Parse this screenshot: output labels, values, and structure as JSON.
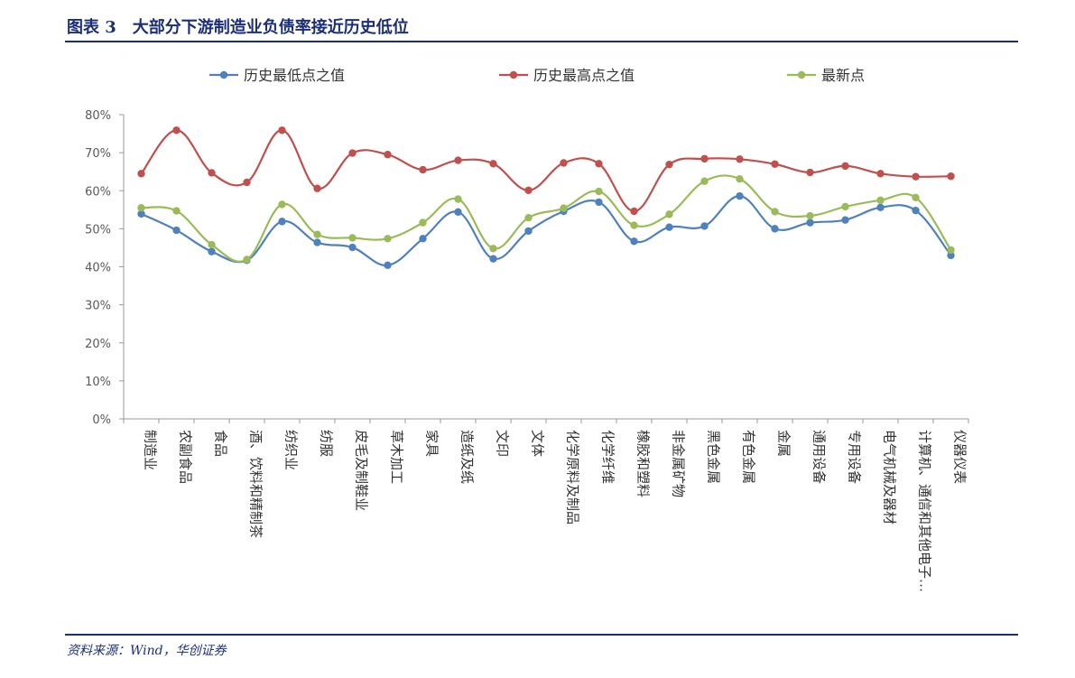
{
  "figure": {
    "title": "图表 3　大部分下游制造业负债率接近历史低位",
    "source": "资料来源：Wind，华创证券"
  },
  "chart_data": {
    "type": "line",
    "title": "",
    "xlabel": "",
    "ylabel": "",
    "ylim": [
      0,
      80
    ],
    "yticks": [
      "0%",
      "10%",
      "20%",
      "30%",
      "40%",
      "50%",
      "60%",
      "70%",
      "80%"
    ],
    "grid": false,
    "legend_position": "top",
    "categories": [
      "制造业",
      "农副食品",
      "食品",
      "酒、饮料和精制茶",
      "纺织业",
      "纺服",
      "皮毛及制鞋业",
      "草木加工",
      "家具",
      "造纸及纸",
      "文印",
      "文体",
      "化学原料及制品",
      "化学纤维",
      "橡胶和塑料",
      "非金属矿物",
      "黑色金属",
      "有色金属",
      "金属",
      "通用设备",
      "专用设备",
      "电气机械及器材",
      "计算机、通信和其他电子…",
      "仪器仪表"
    ],
    "series": [
      {
        "name": "历史最低点之值",
        "color": "#4f81bd",
        "values": [
          53.9,
          49.6,
          44.0,
          41.7,
          51.9,
          46.4,
          45.1,
          40.4,
          47.4,
          54.4,
          42.1,
          49.4,
          54.6,
          57.0,
          46.7,
          50.4,
          50.7,
          58.6,
          50.0,
          51.6,
          52.3,
          55.6,
          54.8,
          43.0
        ]
      },
      {
        "name": "历史最高点之值",
        "color": "#c0504d",
        "values": [
          64.5,
          75.9,
          64.7,
          62.2,
          75.9,
          60.6,
          69.9,
          69.5,
          65.5,
          68.0,
          67.1,
          60.1,
          67.3,
          67.1,
          54.6,
          66.9,
          68.4,
          68.3,
          67.0,
          64.8,
          66.5,
          64.5,
          63.7,
          63.8
        ]
      },
      {
        "name": "最新点",
        "color": "#9bbb59",
        "values": [
          55.5,
          54.7,
          45.8,
          41.9,
          56.4,
          48.5,
          47.6,
          47.4,
          51.6,
          57.8,
          44.8,
          52.9,
          55.4,
          59.8,
          50.9,
          53.8,
          62.5,
          63.1,
          54.5,
          53.4,
          55.8,
          57.5,
          58.2,
          44.4
        ]
      }
    ]
  }
}
